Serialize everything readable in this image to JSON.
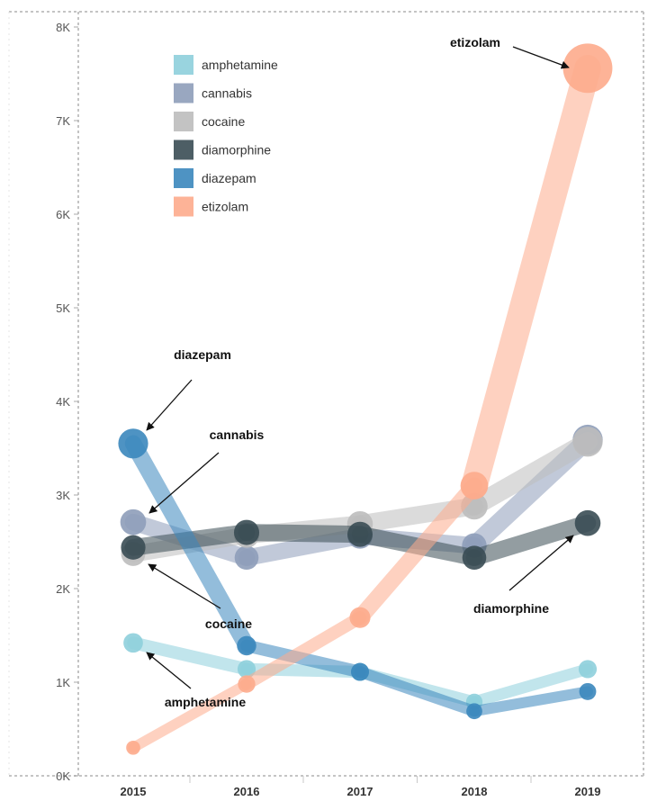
{
  "chart_data": {
    "type": "line",
    "title": "",
    "xlabel": "",
    "ylabel": "",
    "x": [
      "2015",
      "2016",
      "2017",
      "2018",
      "2019"
    ],
    "ylim": [
      0,
      8000
    ],
    "yticks": [
      0,
      1000,
      2000,
      3000,
      4000,
      5000,
      6000,
      7000,
      8000
    ],
    "ytick_labels": [
      "0K",
      "1K",
      "2K",
      "3K",
      "4K",
      "5K",
      "6K",
      "7K",
      "8K"
    ],
    "grid": false,
    "legend_position": "top-left",
    "series": [
      {
        "name": "amphetamine",
        "color": "#8ecfdc",
        "values": [
          1420,
          1140,
          1110,
          790,
          1140
        ]
      },
      {
        "name": "cannabis",
        "color": "#8e9db9",
        "values": [
          2710,
          2330,
          2560,
          2460,
          3590
        ]
      },
      {
        "name": "cocaine",
        "color": "#bdbdbd",
        "values": [
          2370,
          2570,
          2690,
          2880,
          3570
        ]
      },
      {
        "name": "diamorphine",
        "color": "#3a4c54",
        "values": [
          2440,
          2600,
          2580,
          2330,
          2700
        ]
      },
      {
        "name": "diazepam",
        "color": "#3b87bd",
        "values": [
          3550,
          1390,
          1110,
          690,
          900
        ]
      },
      {
        "name": "etizolam",
        "color": "#fdab8c",
        "values": [
          300,
          980,
          1690,
          3100,
          7560
        ]
      }
    ],
    "annotations": [
      {
        "text": "etizolam",
        "series": "etizolam",
        "x": "2019"
      },
      {
        "text": "diazepam",
        "series": "diazepam",
        "x": "2015"
      },
      {
        "text": "cannabis",
        "series": "cannabis",
        "x": "2015"
      },
      {
        "text": "cocaine",
        "series": "cocaine",
        "x": "2015"
      },
      {
        "text": "diamorphine",
        "series": "diamorphine",
        "x": "2019"
      },
      {
        "text": "amphetamine",
        "series": "amphetamine",
        "x": "2015"
      }
    ]
  }
}
